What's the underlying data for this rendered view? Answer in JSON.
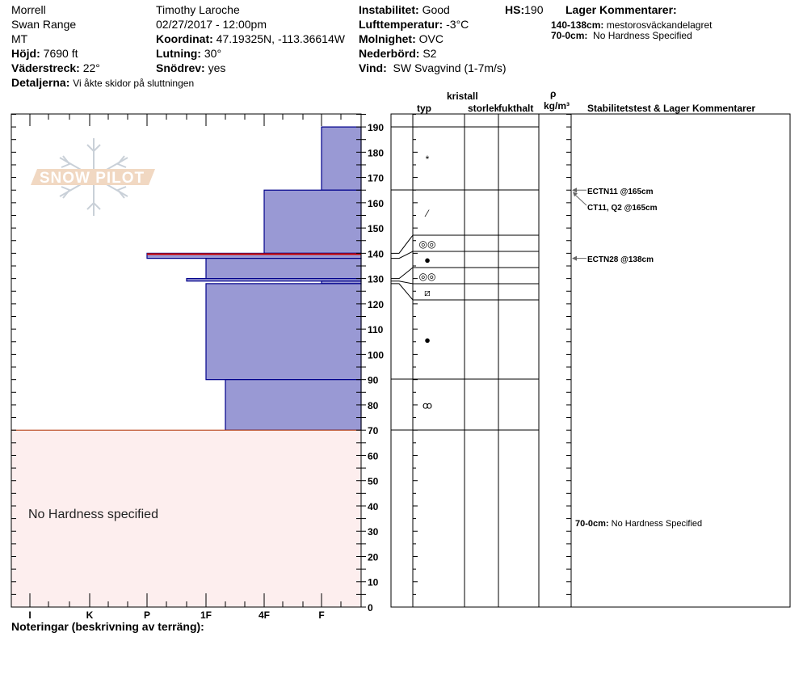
{
  "header": {
    "location": "Morrell",
    "range": "Swan Range",
    "state": "MT",
    "elevation_label": "Höjd:",
    "elevation": "7690 ft",
    "aspect_label": "Väderstreck:",
    "aspect": "22°",
    "details_label": "Detaljerna:",
    "details": "Vi åkte skidor på sluttningen",
    "observer": "Timothy  Laroche",
    "datetime": "02/27/2017 - 12:00pm",
    "coord_label": "Koordinat:",
    "coord": "47.19325N, -113.36614W",
    "slope_label": "Lutning:",
    "slope": "30°",
    "wind_loading_label": "Snödrev:",
    "wind_loading": "yes",
    "stability_label": "Instabilitet:",
    "stability": "Good",
    "air_temp_label": "Lufttemperatur:",
    "air_temp": "-3°C",
    "sky_label": "Molnighet:",
    "sky": "OVC",
    "precip_label": "Nederbörd:",
    "precip": "S2",
    "wind_label": "Vind:",
    "wind": "SW Svagvind (1-7m/s)",
    "hs_label": "HS:",
    "hs": "190",
    "layer_comments_title": "Lager Kommentarer:",
    "layer_comments": [
      {
        "range": "140-138cm:",
        "text": "mestorosväckandelagret"
      },
      {
        "range": "70-0cm:",
        "text": "No Hardness Specified"
      }
    ]
  },
  "columns": {
    "crystal": "kristall",
    "type": "typ",
    "size": "storlek",
    "moisture": "fukthalt",
    "rho": "ρ",
    "density_unit": "kg/m³",
    "stability": "Stabilitetstest & Lager Kommentarer"
  },
  "footer": {
    "notes_label": "Noteringar (beskrivning av terräng):"
  },
  "logo_text": "SNOW PILOT",
  "chart_data": {
    "type": "bar",
    "orientation": "horizontal-step profile",
    "y_axis": {
      "range": [
        0,
        190
      ],
      "ticks": [
        0,
        10,
        20,
        30,
        40,
        50,
        60,
        70,
        80,
        90,
        100,
        110,
        120,
        130,
        140,
        150,
        160,
        170,
        180,
        190
      ]
    },
    "x_axis": {
      "ticks": [
        "I",
        "K",
        "P",
        "1F",
        "4F",
        "F"
      ]
    },
    "colors": {
      "layer_fill": "#9999d4",
      "layer_stroke": "#00008b",
      "highlight": "#cc0000",
      "no_hardness_fill": "#fdeeee",
      "no_hardness_stroke": "#b03000"
    },
    "layers": [
      {
        "top": 190,
        "bottom": 165,
        "hardness": "F",
        "grain": "*"
      },
      {
        "top": 165,
        "bottom": 140,
        "hardness": "4F",
        "grain": "⁄"
      },
      {
        "top": 140,
        "bottom": 138,
        "hardness": "P",
        "grain": "◎◎",
        "highlight": true
      },
      {
        "top": 138,
        "bottom": 130,
        "hardness": "1F",
        "grain": "●"
      },
      {
        "top": 130,
        "bottom": 129,
        "hardness": "1F-",
        "grain": "◎◎"
      },
      {
        "top": 129,
        "bottom": 128,
        "hardness": "F",
        "grain": "⧄"
      },
      {
        "top": 128,
        "bottom": 90,
        "hardness": "1F",
        "grain": "●"
      },
      {
        "top": 90,
        "bottom": 70,
        "hardness": "1F+",
        "grain": "ꝏ"
      },
      {
        "top": 70,
        "bottom": 0,
        "hardness": null,
        "label": "No Hardness specified"
      }
    ],
    "stability_tests": [
      {
        "text": "ECTN11 @165cm",
        "depth": 165
      },
      {
        "text": "CT11, Q2 @165cm",
        "depth": 165
      },
      {
        "text": "ECTN28 @138cm",
        "depth": 138
      }
    ],
    "column_comment": {
      "range": "70-0cm:",
      "text": "No Hardness Specified"
    }
  }
}
